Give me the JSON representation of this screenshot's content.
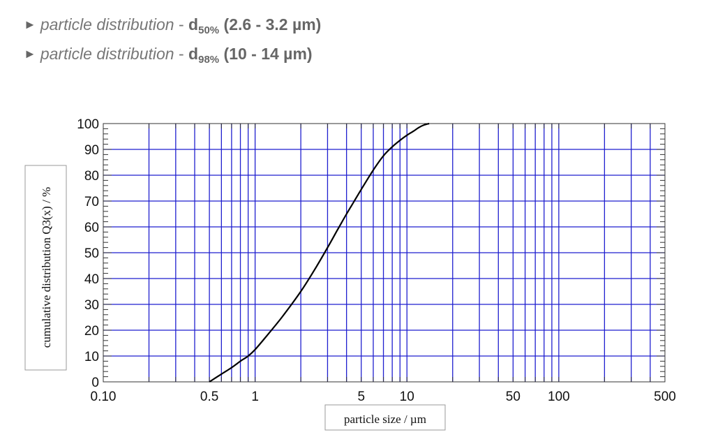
{
  "bullets": [
    {
      "label": "particle distribution",
      "sep": "-",
      "symbol": "d",
      "sub": "50%",
      "range": "(2.6 - 3.2 µm)"
    },
    {
      "label": "particle distribution",
      "sep": "-",
      "symbol": "d",
      "sub": "98%",
      "range": "(10 - 14 µm)"
    }
  ],
  "chart_data": {
    "type": "line",
    "xlabel": "particle size / µm",
    "ylabel": "cumulative distribution Q3(x) / %",
    "xscale": "log",
    "xlim": [
      0.1,
      500
    ],
    "ylim": [
      0,
      100
    ],
    "grid": true,
    "x_ticks": [
      0.1,
      0.5,
      1,
      5,
      10,
      50,
      100,
      500
    ],
    "x_tick_labels": [
      "0.10",
      "0.5",
      "1",
      "5",
      "10",
      "50",
      "100",
      "500"
    ],
    "y_ticks": [
      0,
      10,
      20,
      30,
      40,
      50,
      60,
      70,
      80,
      90,
      100
    ],
    "y_tick_labels": [
      "0",
      "10",
      "20",
      "30",
      "40",
      "50",
      "60",
      "70",
      "80",
      "90",
      "100"
    ],
    "series": [
      {
        "x": [
          0.5,
          0.6,
          0.7,
          0.8,
          0.9,
          1.0,
          1.2,
          1.5,
          2.0,
          2.5,
          3.0,
          3.5,
          4.0,
          4.5,
          5.0,
          6.0,
          7.0,
          8.0,
          9.0,
          10.0,
          11.0,
          12.0,
          13.0,
          14.0
        ],
        "y": [
          0,
          3,
          5.5,
          8,
          10,
          12.5,
          18,
          25,
          35,
          44,
          52,
          59,
          65,
          70,
          74.5,
          82,
          87.5,
          91,
          93.5,
          95.5,
          97,
          98.5,
          99.5,
          100
        ],
        "color": "#000000"
      }
    ],
    "grid_color": "#1f1fcf"
  }
}
